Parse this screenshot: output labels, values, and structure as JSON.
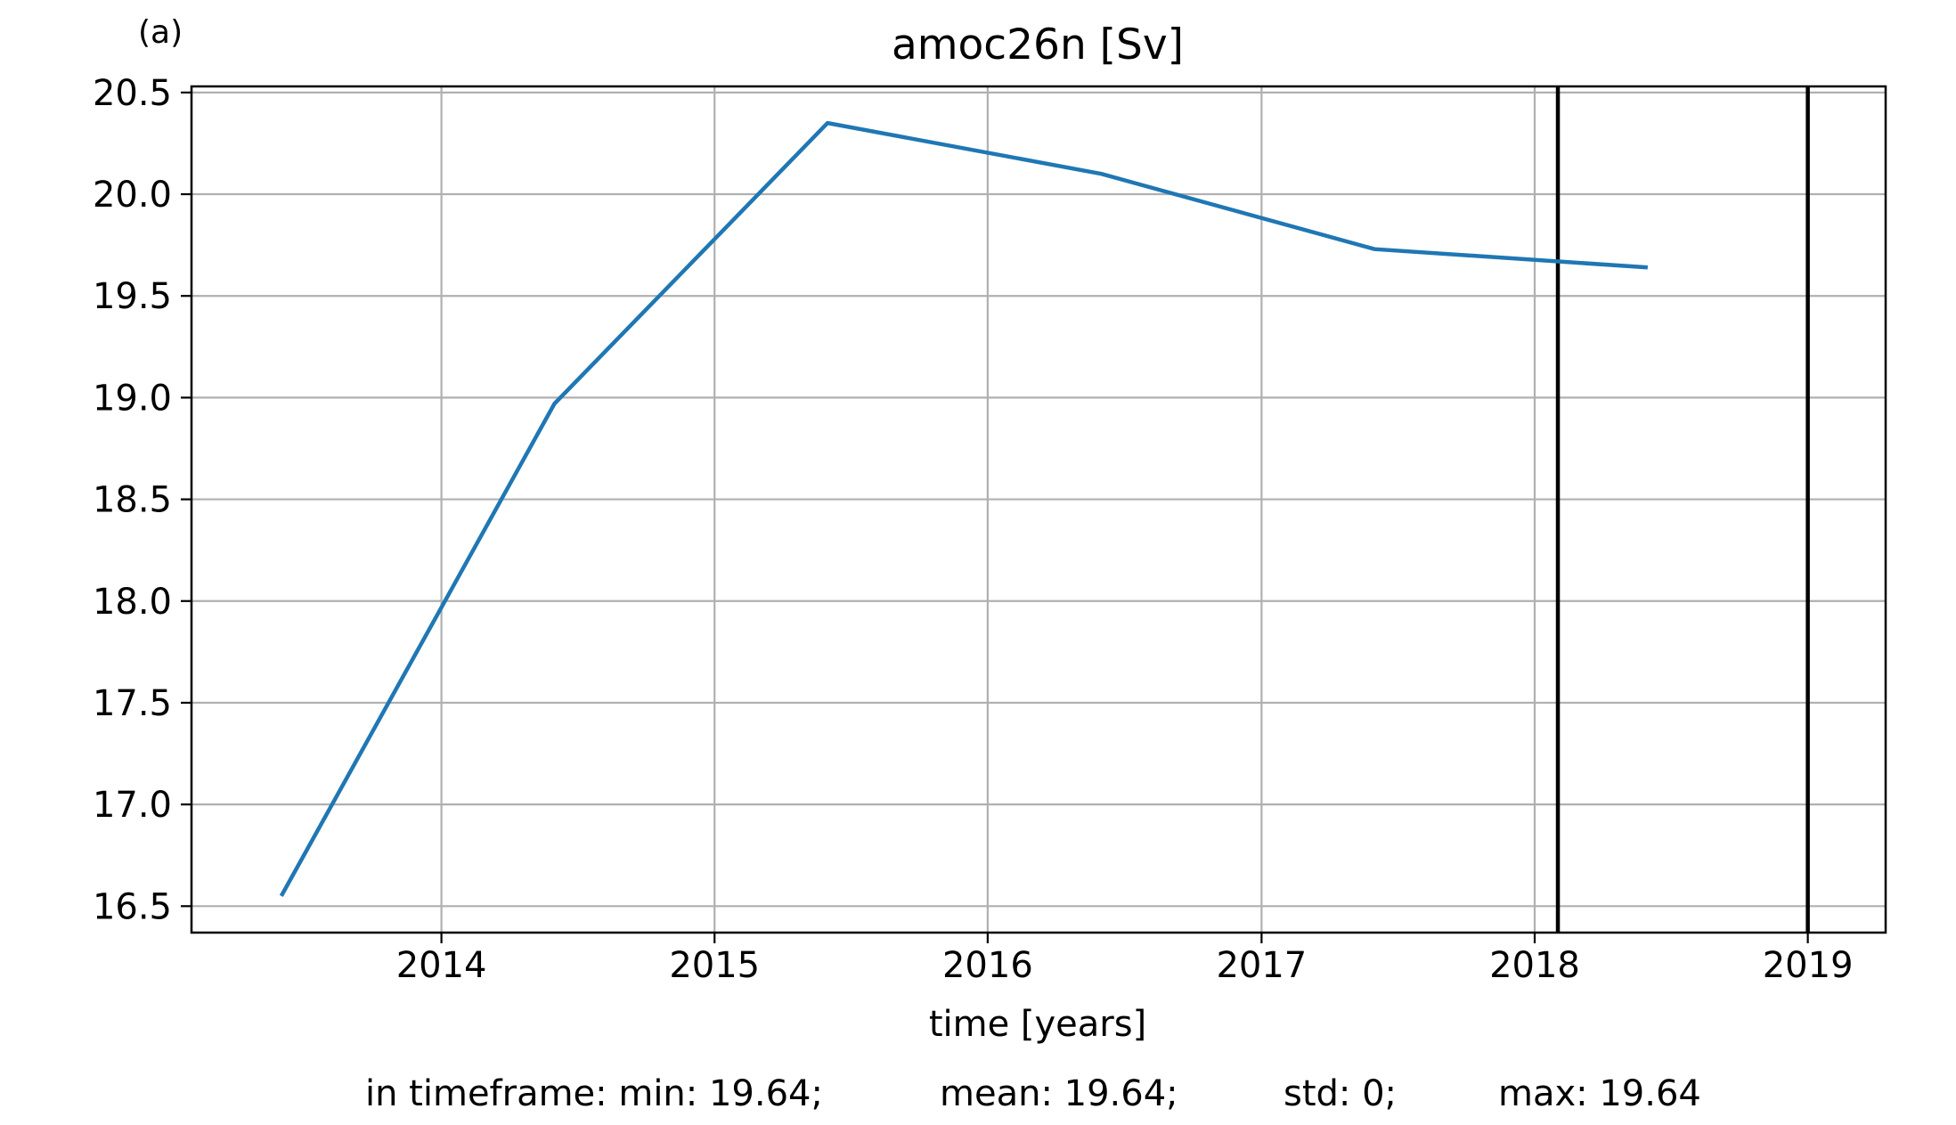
{
  "panel_label": "(a)",
  "chart_data": {
    "type": "line",
    "title": "amoc26n [Sv]",
    "xlabel": "time [years]",
    "ylabel": "",
    "xlim": [
      "2013-02-01",
      "2019-04-15"
    ],
    "ylim": [
      16.37,
      20.53
    ],
    "x_ticks": [
      "2014",
      "2015",
      "2016",
      "2017",
      "2018",
      "2019"
    ],
    "y_ticks": [
      "16.5",
      "17.0",
      "17.5",
      "18.0",
      "18.5",
      "19.0",
      "19.5",
      "20.0",
      "20.5"
    ],
    "grid": true,
    "series": [
      {
        "color": "#1f77b4",
        "x": [
          "2013-06-01",
          "2014-06-01",
          "2015-06-01",
          "2016-06-01",
          "2017-06-01",
          "2018-06-01"
        ],
        "y": [
          16.55,
          18.97,
          20.35,
          20.1,
          19.73,
          19.64
        ]
      }
    ],
    "vertical_lines": [
      "2018-02-01",
      "2019-01-01"
    ],
    "vertical_line_color": "#000000"
  },
  "stats": {
    "min": "in timeframe: min: 19.64;",
    "mean": "mean: 19.64;",
    "std": "std: 0;",
    "max": "max: 19.64"
  }
}
